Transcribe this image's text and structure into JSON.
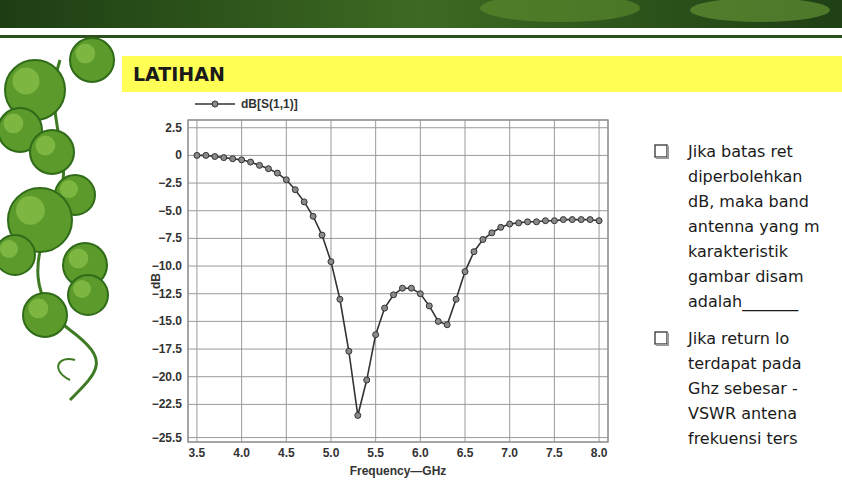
{
  "chart_data": {
    "type": "line",
    "x_label": "Frequency—GHz",
    "y_label": "dB",
    "x": [
      3.5,
      3.6,
      3.7,
      3.8,
      3.9,
      4.0,
      4.1,
      4.2,
      4.3,
      4.4,
      4.5,
      4.6,
      4.7,
      4.8,
      4.9,
      5.0,
      5.1,
      5.2,
      5.3,
      5.4,
      5.5,
      5.6,
      5.7,
      5.8,
      5.9,
      6.0,
      6.1,
      6.2,
      6.3,
      6.4,
      6.5,
      6.6,
      6.7,
      6.8,
      6.9,
      7.0,
      7.1,
      7.2,
      7.3,
      7.4,
      7.5,
      7.6,
      7.7,
      7.8,
      7.9,
      8.0
    ],
    "series": [
      {
        "name": "dB[S(1,1)]",
        "color": "#333333",
        "marker": "circle",
        "values": [
          0,
          0,
          -0.1,
          -0.2,
          -0.3,
          -0.4,
          -0.6,
          -0.9,
          -1.2,
          -1.6,
          -2.2,
          -3.1,
          -4.2,
          -5.5,
          -7.2,
          -9.6,
          -13.0,
          -17.7,
          -23.5,
          -20.3,
          -16.2,
          -13.8,
          -12.6,
          -12.0,
          -12.0,
          -12.5,
          -13.6,
          -15.0,
          -15.3,
          -13.0,
          -10.5,
          -8.7,
          -7.6,
          -7.0,
          -6.5,
          -6.2,
          -6.1,
          -6.0,
          -6.0,
          -5.9,
          -5.9,
          -5.8,
          -5.8,
          -5.8,
          -5.8,
          -5.9
        ]
      }
    ],
    "xlim": [
      3.4,
      8.1
    ],
    "ylim": [
      -25.9,
      3.2
    ],
    "xticks": [
      3.5,
      {
        "value": 4,
        "label": "4.0"
      },
      4.5,
      {
        "value": 5,
        "label": "5.0"
      },
      5.5,
      {
        "value": 6,
        "label": "6.0"
      },
      6.5,
      {
        "value": 7,
        "label": "7.0"
      },
      7.5,
      {
        "value": 8,
        "label": "8.0"
      }
    ],
    "yticks": [
      2.5,
      0,
      {
        "value": -2.5,
        "label": "−2.5"
      },
      {
        "value": -5,
        "label": "−5.0"
      },
      {
        "value": -7.5,
        "label": "−7.5"
      },
      {
        "value": -10,
        "label": "−10.0"
      },
      {
        "value": -12.5,
        "label": "−12.5"
      },
      {
        "value": -15,
        "label": "−15.0"
      },
      {
        "value": -17.5,
        "label": "−17.5"
      },
      {
        "value": -20,
        "label": "−20.0"
      },
      {
        "value": -22.5,
        "label": "−22.5"
      },
      {
        "value": -25.5,
        "label": "−25.5"
      }
    ],
    "grid": true,
    "legend": "top-left"
  },
  "slide": {
    "heading": "LATIHAN",
    "bullets": [
      [
        "Jika batas ret",
        "diperbolehkan",
        "dB, maka band",
        "antenna yang m",
        "karakteristik",
        "gambar disam",
        "adalah_______"
      ],
      [
        "Jika return lo",
        "terdapat pada",
        "Ghz sebesar -",
        "VSWR antena",
        "frekuensi ters"
      ]
    ]
  }
}
